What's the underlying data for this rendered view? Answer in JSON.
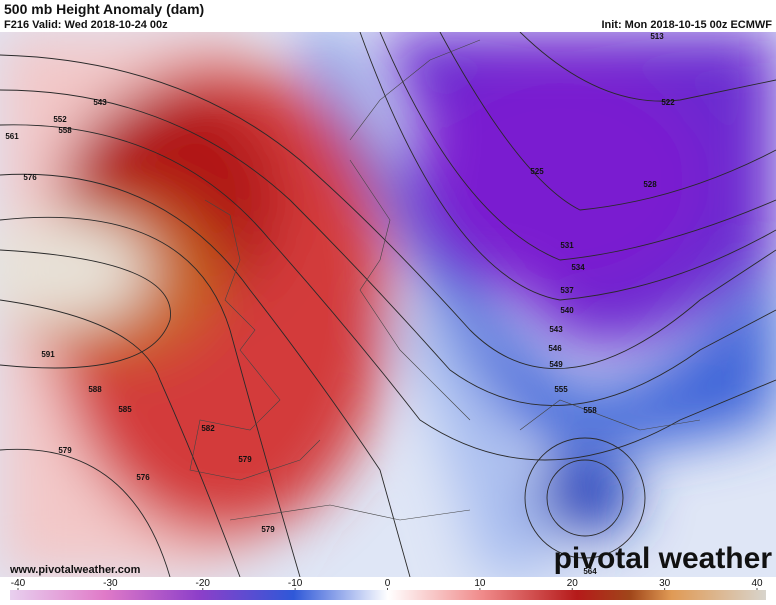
{
  "header": {
    "title": "500 mb Height Anomaly (dam)",
    "valid": "F216 Valid: Wed 2018-10-24 00z",
    "init": "Init: Mon 2018-10-15 00z ECMWF"
  },
  "map": {
    "contour_labels": [
      "543",
      "552",
      "558",
      "561",
      "576",
      "591",
      "588",
      "585",
      "582",
      "579",
      "579",
      "576",
      "579",
      "513",
      "522",
      "525",
      "528",
      "531",
      "534",
      "537",
      "540",
      "543",
      "546",
      "549",
      "555",
      "558",
      "564"
    ]
  },
  "footer": {
    "website": "www.pivotalweather.com",
    "logo": "pivotal weather"
  },
  "colorbar": {
    "ticks": [
      -40,
      -30,
      -20,
      -10,
      0,
      10,
      20,
      30,
      40
    ]
  }
}
